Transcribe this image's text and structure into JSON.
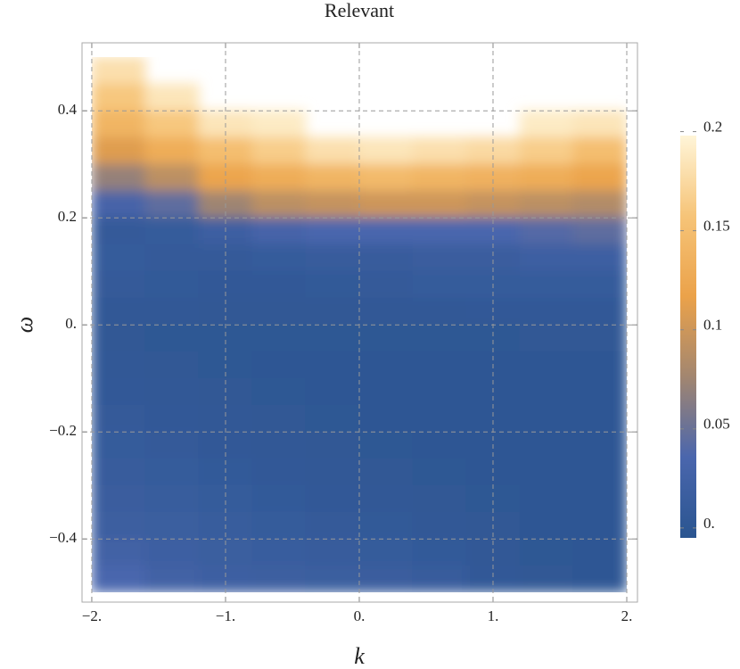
{
  "chart_data": {
    "type": "heatmap",
    "title": "Relevant",
    "x_label": "k",
    "y_label": "ω",
    "x": [
      -1.8,
      -1.4,
      -1.0,
      -0.6,
      -0.2,
      0.2,
      0.6,
      1.0,
      1.4,
      1.8
    ],
    "y": [
      0.475,
      0.425,
      0.375,
      0.325,
      0.275,
      0.225,
      0.175,
      0.125,
      0.075,
      0.025,
      -0.025,
      -0.075,
      -0.125,
      -0.175,
      -0.225,
      -0.275,
      -0.325,
      -0.375,
      -0.425,
      -0.475
    ],
    "z": [
      [
        0.18,
        null,
        null,
        null,
        null,
        null,
        null,
        null,
        null,
        null
      ],
      [
        0.16,
        0.185,
        null,
        null,
        null,
        null,
        null,
        null,
        null,
        null
      ],
      [
        0.14,
        0.16,
        0.185,
        0.19,
        null,
        null,
        null,
        null,
        0.19,
        0.185
      ],
      [
        0.11,
        0.13,
        0.15,
        0.165,
        0.18,
        0.185,
        0.18,
        0.175,
        0.165,
        0.15
      ],
      [
        0.07,
        0.09,
        0.12,
        0.13,
        0.14,
        0.145,
        0.14,
        0.135,
        0.13,
        0.12
      ],
      [
        0.03,
        0.045,
        0.075,
        0.09,
        0.095,
        0.1,
        0.1,
        0.095,
        0.09,
        0.085
      ],
      [
        0.008,
        0.01,
        0.02,
        0.03,
        0.035,
        0.035,
        0.035,
        0.035,
        0.04,
        0.045
      ],
      [
        0.01,
        0.008,
        0.008,
        0.01,
        0.012,
        0.012,
        0.015,
        0.015,
        0.02,
        0.02
      ],
      [
        0.008,
        0.006,
        0.005,
        0.005,
        0.006,
        0.008,
        0.01,
        0.01,
        0.01,
        0.01
      ],
      [
        0.004,
        0.003,
        0.002,
        0.002,
        0.002,
        0.003,
        0.004,
        0.005,
        0.005,
        0.005
      ],
      [
        0.002,
        0.001,
        0.001,
        0.001,
        0.001,
        0.001,
        0.001,
        0.001,
        0.002,
        0.002
      ],
      [
        0.003,
        0.002,
        0.001,
        0,
        0,
        0,
        0,
        0,
        0,
        0
      ],
      [
        0.005,
        0.003,
        0.002,
        0.001,
        0,
        0,
        0,
        0,
        0,
        0
      ],
      [
        0.008,
        0.005,
        0.003,
        0.002,
        0.001,
        0,
        0,
        0,
        0,
        0
      ],
      [
        0.01,
        0.008,
        0.005,
        0.003,
        0.002,
        0.001,
        0,
        0,
        0,
        0
      ],
      [
        0.012,
        0.01,
        0.007,
        0.005,
        0.003,
        0.002,
        0.001,
        0,
        0,
        0
      ],
      [
        0.015,
        0.013,
        0.01,
        0.007,
        0.005,
        0.003,
        0.002,
        0.001,
        0,
        0
      ],
      [
        0.018,
        0.016,
        0.013,
        0.01,
        0.008,
        0.006,
        0.004,
        0.002,
        0,
        0
      ],
      [
        0.025,
        0.02,
        0.016,
        0.014,
        0.012,
        0.01,
        0.007,
        0.003,
        0.001,
        0
      ],
      [
        0.035,
        0.025,
        0.02,
        0.018,
        0.016,
        0.015,
        0.012,
        0.005,
        0.002,
        0
      ]
    ],
    "xlim": [
      -2.073,
      2.08
    ],
    "ylim": [
      -0.518,
      0.527
    ],
    "xticks": [
      {
        "value": -2,
        "label": "−2."
      },
      {
        "value": -1,
        "label": "−1."
      },
      {
        "value": 0,
        "label": "0."
      },
      {
        "value": 1,
        "label": "1."
      },
      {
        "value": 2,
        "label": "2."
      }
    ],
    "yticks": [
      {
        "value": -0.4,
        "label": "−0.4"
      },
      {
        "value": -0.2,
        "label": "−0.2"
      },
      {
        "value": 0,
        "label": "0."
      },
      0.2,
      0.4
    ],
    "zlim": [
      -0.005,
      0.198
    ],
    "zticks": [
      {
        "value": 0,
        "label": "0."
      },
      0.05,
      0.1,
      0.15,
      0.2
    ],
    "colors": [
      "#2a5590",
      "#4a66ad",
      "#a28670",
      "#eba24a",
      "#f6c478",
      "#fff5d8"
    ],
    "grid": true
  }
}
